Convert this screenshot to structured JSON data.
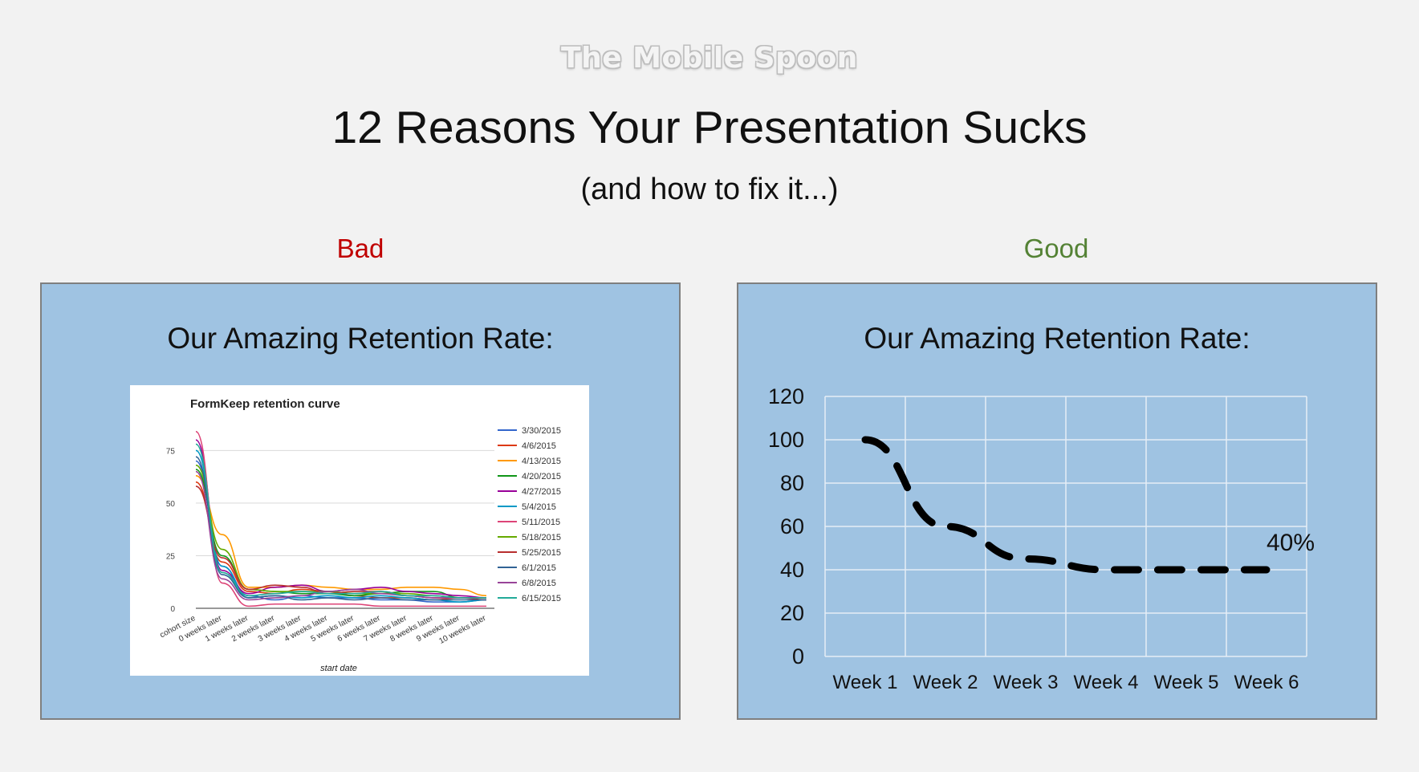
{
  "slide": {
    "brand": "The Mobile Spoon",
    "title": "12 Reasons Your Presentation Sucks",
    "subtitle": "(and how to fix it...)",
    "bad_label": "Bad",
    "good_label": "Good",
    "panel_title_bad": "Our Amazing Retention Rate:",
    "panel_title_good": "Our Amazing Retention Rate:"
  },
  "colors": {
    "background": "#f2f2f2",
    "panel": "#9fc3e2",
    "bad": "#c00000",
    "good": "#548235"
  },
  "chart_data": [
    {
      "type": "line",
      "title": "FormKeep retention curve",
      "xlabel": "start date",
      "ylabel": "",
      "categories": [
        "cohort size",
        "0 weeks later",
        "1 weeks later",
        "2 weeks later",
        "3 weeks later",
        "4 weeks later",
        "5 weeks later",
        "6 weeks later",
        "7 weeks later",
        "8 weeks later",
        "9 weeks later",
        "10 weeks later"
      ],
      "yticks": [
        0,
        25,
        50,
        75
      ],
      "ylim": [
        0,
        90
      ],
      "legend_position": "right",
      "grid": true,
      "series": [
        {
          "name": "3/30/2015",
          "color": "#3366cc",
          "values": [
            70,
            20,
            6,
            4,
            6,
            5,
            5,
            4,
            4,
            3,
            3,
            4
          ]
        },
        {
          "name": "4/6/2015",
          "color": "#dc3912",
          "values": [
            60,
            22,
            8,
            7,
            9,
            8,
            6,
            5,
            5,
            4,
            5,
            5
          ]
        },
        {
          "name": "4/13/2015",
          "color": "#ff9900",
          "values": [
            63,
            35,
            10,
            10,
            11,
            10,
            9,
            9,
            10,
            10,
            9,
            6
          ]
        },
        {
          "name": "4/20/2015",
          "color": "#109618",
          "values": [
            66,
            25,
            9,
            8,
            7,
            7,
            6,
            7,
            8,
            8,
            5,
            5
          ]
        },
        {
          "name": "4/27/2015",
          "color": "#990099",
          "values": [
            80,
            18,
            7,
            10,
            11,
            8,
            9,
            10,
            8,
            7,
            6,
            5
          ]
        },
        {
          "name": "5/4/2015",
          "color": "#0099c6",
          "values": [
            75,
            20,
            5,
            6,
            5,
            6,
            5,
            6,
            5,
            4,
            3,
            4
          ]
        },
        {
          "name": "5/11/2015",
          "color": "#dd4477",
          "values": [
            84,
            12,
            1,
            2,
            2,
            2,
            2,
            1,
            1,
            1,
            1,
            1
          ]
        },
        {
          "name": "5/18/2015",
          "color": "#66aa00",
          "values": [
            68,
            28,
            9,
            8,
            8,
            8,
            7,
            7,
            7,
            6,
            5,
            5
          ]
        },
        {
          "name": "5/25/2015",
          "color": "#b82e2e",
          "values": [
            58,
            24,
            9,
            11,
            10,
            7,
            8,
            8,
            6,
            5,
            5,
            4
          ]
        },
        {
          "name": "6/1/2015",
          "color": "#316395",
          "values": [
            72,
            16,
            5,
            6,
            4,
            5,
            4,
            5,
            4,
            4,
            4,
            4
          ]
        },
        {
          "name": "6/8/2015",
          "color": "#994499",
          "values": [
            65,
            14,
            4,
            5,
            6,
            8,
            9,
            7,
            6,
            5,
            5,
            5
          ]
        },
        {
          "name": "6/15/2015",
          "color": "#22aa99",
          "values": [
            78,
            17,
            6,
            7,
            8,
            7,
            7,
            8,
            6,
            6,
            5,
            5
          ]
        }
      ]
    },
    {
      "type": "line",
      "title": "",
      "xlabel": "",
      "ylabel": "",
      "categories": [
        "Week 1",
        "Week 2",
        "Week 3",
        "Week 4",
        "Week 5",
        "Week 6"
      ],
      "ylim": [
        0,
        120
      ],
      "yticks": [
        0,
        20,
        40,
        60,
        80,
        100,
        120
      ],
      "grid": true,
      "line_style": "dashed",
      "line_color": "#000000",
      "series": [
        {
          "values": [
            100,
            60,
            45,
            40,
            40,
            40
          ]
        }
      ],
      "annotation": "40%"
    }
  ]
}
